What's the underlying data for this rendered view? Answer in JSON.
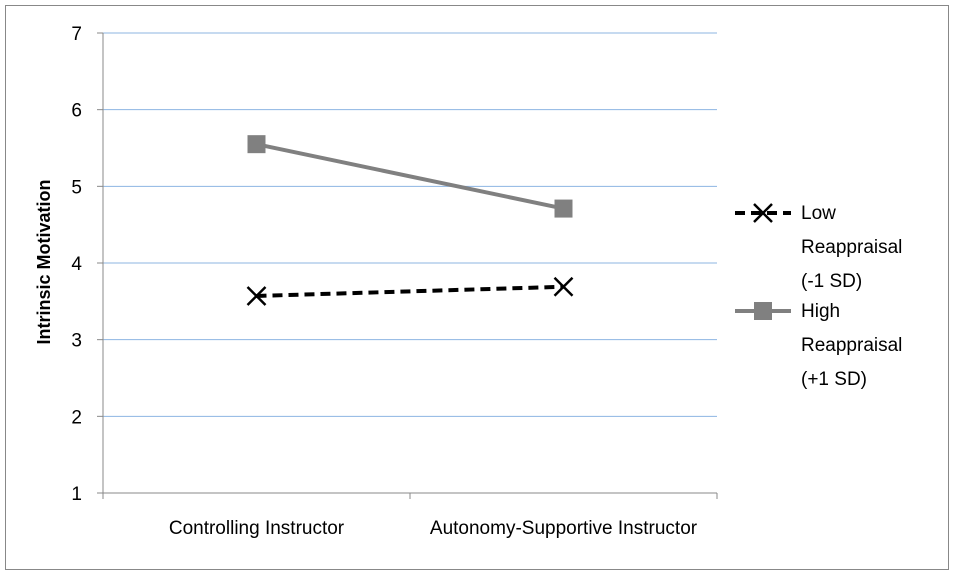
{
  "chart_data": {
    "type": "line",
    "title": "",
    "xlabel": "",
    "ylabel": "Intrinsic Motivation",
    "ylim": [
      1,
      7
    ],
    "yticks": [
      "1",
      "2",
      "3",
      "4",
      "5",
      "6",
      "7"
    ],
    "categories": [
      "Controlling Instructor",
      "Autonomy-Supportive Instructor"
    ],
    "grid": true,
    "legend_position": "right",
    "series": [
      {
        "name": "Low Reappraisal (-1 SD)",
        "name_lines": [
          "Low",
          "Reappraisal",
          "(-1 SD)"
        ],
        "values": [
          3.57,
          3.69
        ],
        "color": "#000000",
        "line_style": "dashed",
        "marker": "x"
      },
      {
        "name": "High Reappraisal (+1 SD)",
        "name_lines": [
          "High",
          "Reappraisal",
          "(+1 SD)"
        ],
        "values": [
          5.55,
          4.71
        ],
        "color": "#808080",
        "line_style": "solid",
        "marker": "square"
      }
    ],
    "gridline_color": "#8DB4E2"
  }
}
